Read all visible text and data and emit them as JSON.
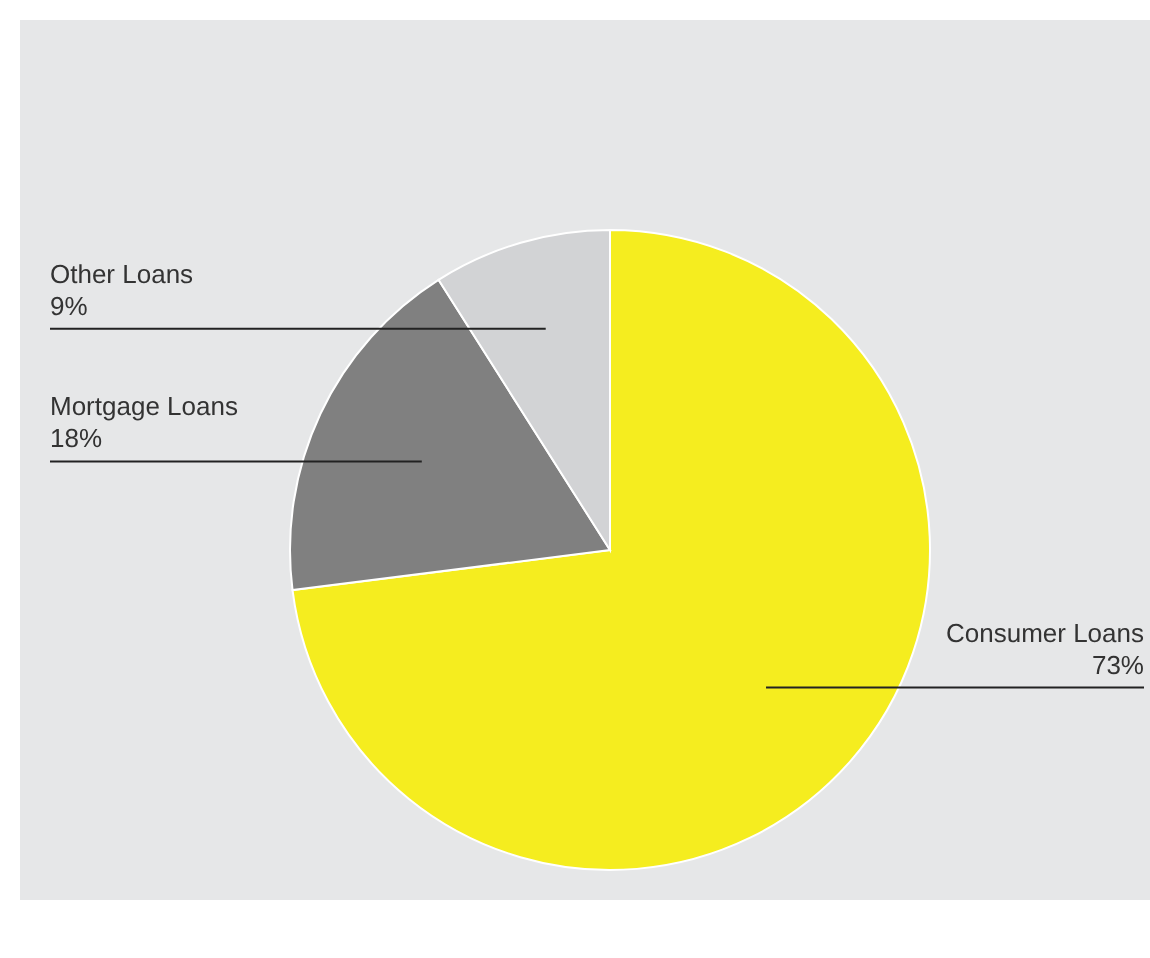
{
  "chart_data": {
    "type": "pie",
    "categories": [
      "Consumer Loans",
      "Mortgage Loans",
      "Other Loans"
    ],
    "values": [
      73,
      18,
      9
    ],
    "value_labels": [
      "73%",
      "18%",
      "9%"
    ],
    "colors": [
      "#f5ed1f",
      "#808080",
      "#d2d3d5"
    ]
  }
}
